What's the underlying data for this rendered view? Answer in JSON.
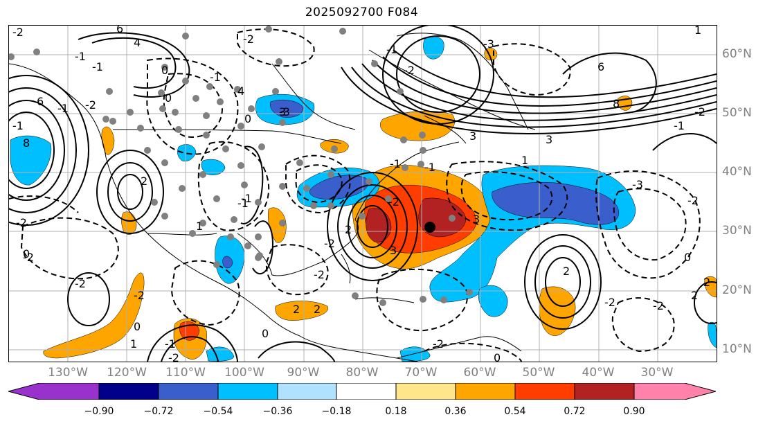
{
  "title": "2025092700 F084",
  "map": {
    "extent": {
      "lon_min": -140,
      "lon_max": -20,
      "lat_min": 8,
      "lat_max": 65
    },
    "lon_ticks": [
      {
        "lon": -130,
        "label": "130°W"
      },
      {
        "lon": -120,
        "label": "120°W"
      },
      {
        "lon": -110,
        "label": "110°W"
      },
      {
        "lon": -100,
        "label": "100°W"
      },
      {
        "lon": -90,
        "label": "90°W"
      },
      {
        "lon": -80,
        "label": "80°W"
      },
      {
        "lon": -70,
        "label": "70°W"
      },
      {
        "lon": -60,
        "label": "60°W"
      },
      {
        "lon": -50,
        "label": "50°W"
      },
      {
        "lon": -40,
        "label": "40°W"
      },
      {
        "lon": -30,
        "label": "30°W"
      }
    ],
    "lat_ticks": [
      {
        "lat": 60,
        "label": "60°N"
      },
      {
        "lat": 50,
        "label": "50°N"
      },
      {
        "lat": 40,
        "label": "40°N"
      },
      {
        "lat": 30,
        "label": "30°N"
      },
      {
        "lat": 20,
        "label": "20°N"
      },
      {
        "lat": 10,
        "label": "10°N"
      }
    ],
    "gridlines": true,
    "contour_labels": [
      "-2",
      "6",
      "4",
      "0",
      "-1",
      "-1",
      "-2",
      "4",
      "0",
      "-1",
      "3",
      "2",
      "6",
      "-1",
      "-1",
      "8",
      "-2",
      "-1",
      "-2",
      "6",
      "1",
      "-3",
      "3",
      "-2",
      "-1",
      "3",
      "8",
      "3",
      "-3",
      "-1",
      "1",
      "-2",
      "-1",
      "-2",
      "-2",
      "0",
      "-2",
      "3",
      "-2",
      "-2",
      "0",
      "1",
      "-1",
      "0",
      "2",
      "-2",
      "1",
      "-1",
      "2",
      "2",
      "-2",
      "-2",
      "2",
      "-2",
      "0",
      "-2",
      "2",
      "-2",
      "-1",
      "0",
      "-3",
      "2",
      "0"
    ]
  },
  "colorbar": {
    "colors": [
      "#9932cc",
      "#00008b",
      "#3a5fcd",
      "#00bfff",
      "#b0e2ff",
      "#ffffff",
      "#ffe68a",
      "#ffa500",
      "#ff3d00",
      "#b22222",
      "#ff82ab"
    ],
    "tick_labels": [
      "−0.90",
      "−0.72",
      "−0.54",
      "−0.36",
      "−0.18",
      "0.18",
      "0.36",
      "0.54",
      "0.72",
      "0.90"
    ]
  },
  "colors": {
    "orange": "#ffa500",
    "red_orange": "#ff3d00",
    "dark_red": "#b22222",
    "deep_sky_blue": "#00bfff",
    "royal_blue": "#3a5fcd",
    "grid": "#b0b0b0",
    "tick_text": "#808080",
    "dots": "#808080"
  }
}
